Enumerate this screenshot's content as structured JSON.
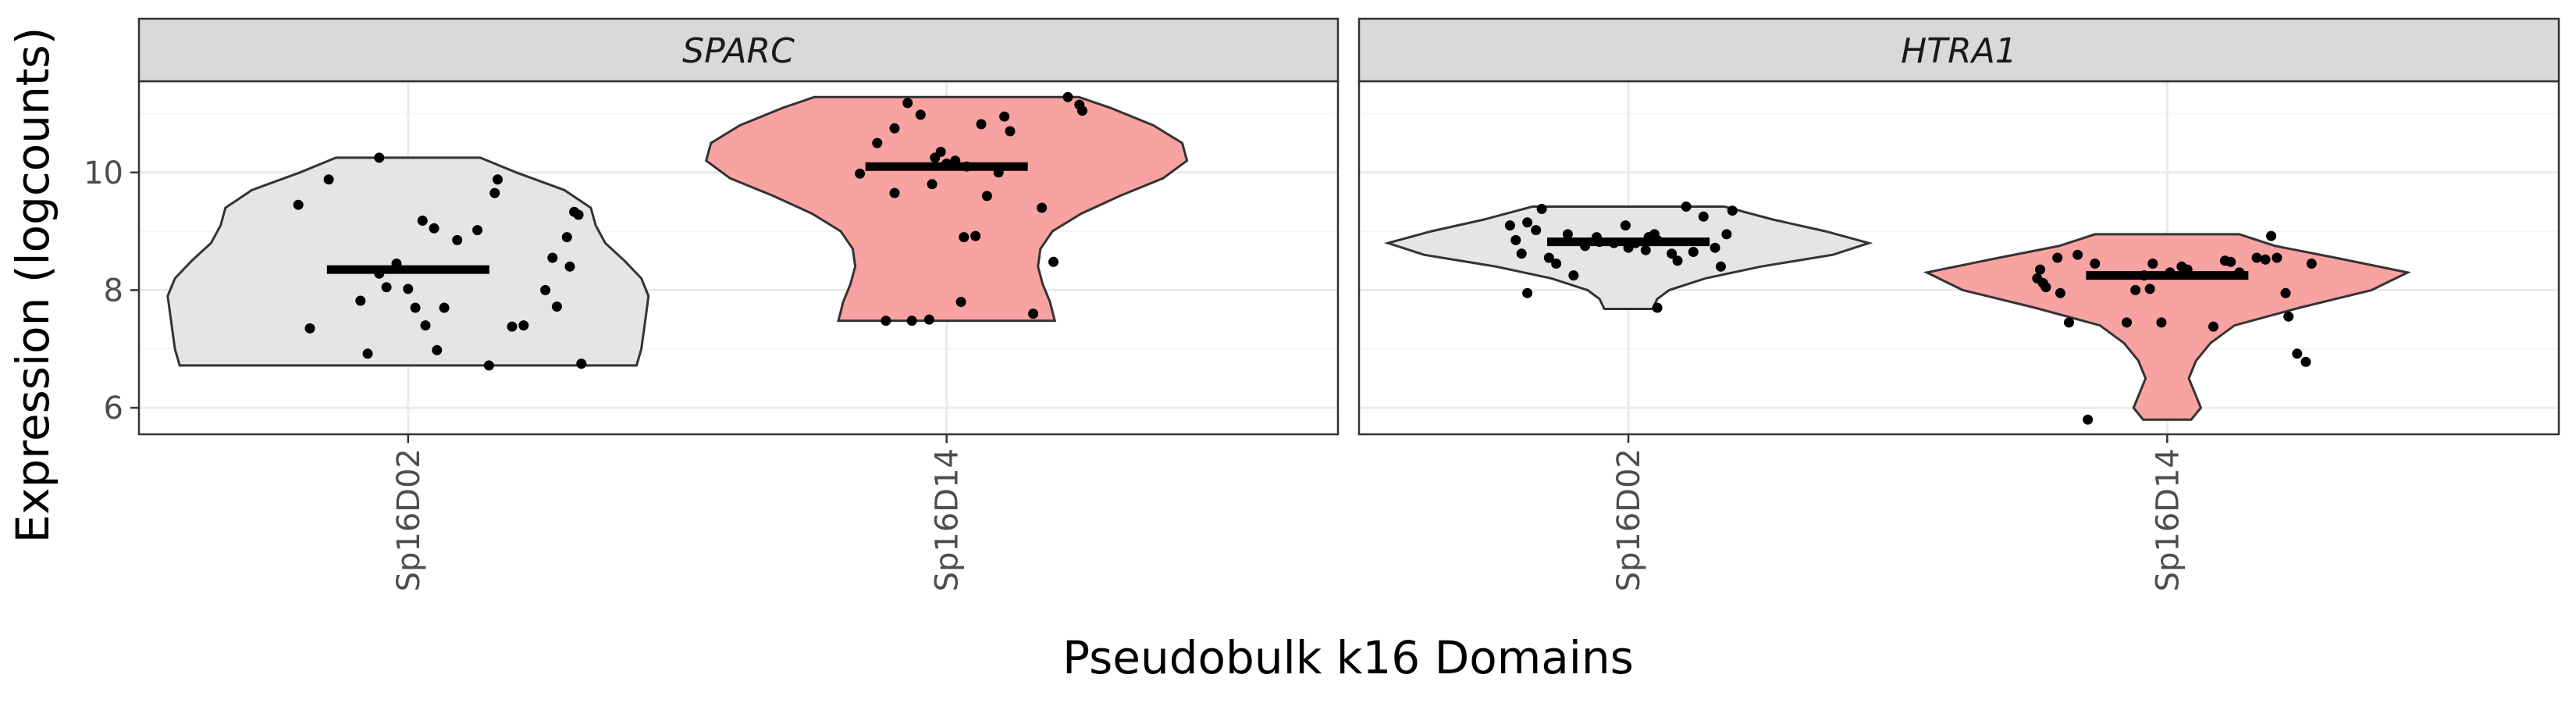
{
  "chart_data": {
    "type": "violin",
    "title": "",
    "xlabel": "Pseudobulk k16 Domains",
    "ylabel": "Expression (logcounts)",
    "ylim": [
      5.55,
      11.55
    ],
    "yticks": [
      6,
      8,
      10
    ],
    "categories": [
      "Sp16D02",
      "Sp16D14"
    ],
    "colors": {
      "Sp16D02": "#e5e5e5",
      "Sp16D14": "#f8a3a1"
    },
    "grid": true,
    "legend": "none",
    "panels": [
      {
        "name": "SPARC",
        "groups": [
          {
            "category": "Sp16D02",
            "median": 8.35,
            "ymin": 6.72,
            "ymax": 10.25,
            "profile": [
              [
                6.72,
                0.95
              ],
              [
                7.0,
                0.97
              ],
              [
                7.3,
                0.98
              ],
              [
                7.6,
                0.99
              ],
              [
                7.9,
                1.0
              ],
              [
                8.2,
                0.97
              ],
              [
                8.5,
                0.9
              ],
              [
                8.8,
                0.82
              ],
              [
                9.1,
                0.78
              ],
              [
                9.4,
                0.76
              ],
              [
                9.7,
                0.65
              ],
              [
                10.0,
                0.45
              ],
              [
                10.25,
                0.3
              ]
            ],
            "points": [
              [
                -0.76,
                9.45
              ],
              [
                -0.55,
                9.88
              ],
              [
                -0.2,
                10.25
              ],
              [
                -0.68,
                7.35
              ],
              [
                -0.33,
                7.82
              ],
              [
                -0.28,
                6.92
              ],
              [
                -0.2,
                8.28
              ],
              [
                0.1,
                9.18
              ],
              [
                -0.08,
                8.45
              ],
              [
                -0.15,
                8.05
              ],
              [
                0.0,
                8.02
              ],
              [
                0.05,
                7.7
              ],
              [
                0.12,
                7.4
              ],
              [
                0.2,
                6.98
              ],
              [
                0.18,
                9.05
              ],
              [
                0.25,
                7.7
              ],
              [
                0.34,
                8.85
              ],
              [
                0.48,
                9.02
              ],
              [
                0.56,
                6.72
              ],
              [
                0.62,
                9.88
              ],
              [
                0.6,
                9.65
              ],
              [
                0.72,
                7.38
              ],
              [
                0.8,
                7.4
              ],
              [
                0.95,
                8.0
              ],
              [
                1.0,
                8.55
              ],
              [
                1.1,
                8.9
              ],
              [
                1.18,
                9.28
              ],
              [
                1.15,
                9.33
              ],
              [
                1.12,
                8.4
              ],
              [
                1.2,
                6.75
              ],
              [
                1.03,
                7.72
              ]
            ]
          },
          {
            "category": "Sp16D14",
            "median": 10.1,
            "ymin": 7.48,
            "ymax": 11.28,
            "profile": [
              [
                7.48,
                0.45
              ],
              [
                7.8,
                0.43
              ],
              [
                8.1,
                0.4
              ],
              [
                8.4,
                0.38
              ],
              [
                8.7,
                0.39
              ],
              [
                9.0,
                0.44
              ],
              [
                9.3,
                0.56
              ],
              [
                9.6,
                0.72
              ],
              [
                9.9,
                0.9
              ],
              [
                10.2,
                1.0
              ],
              [
                10.5,
                0.98
              ],
              [
                10.8,
                0.86
              ],
              [
                11.1,
                0.68
              ],
              [
                11.28,
                0.55
              ]
            ],
            "points": [
              [
                -0.6,
                9.98
              ],
              [
                -0.48,
                10.5
              ],
              [
                -0.36,
                10.75
              ],
              [
                -0.27,
                11.18
              ],
              [
                -0.18,
                10.98
              ],
              [
                -0.36,
                9.65
              ],
              [
                -0.42,
                7.48
              ],
              [
                -0.24,
                7.48
              ],
              [
                -0.12,
                7.5
              ],
              [
                -0.1,
                9.8
              ],
              [
                -0.08,
                10.25
              ],
              [
                -0.04,
                10.35
              ],
              [
                0.0,
                10.15
              ],
              [
                0.06,
                10.2
              ],
              [
                0.14,
                10.1
              ],
              [
                0.12,
                8.9
              ],
              [
                0.2,
                8.92
              ],
              [
                0.1,
                7.8
              ],
              [
                0.24,
                10.82
              ],
              [
                0.28,
                9.6
              ],
              [
                0.36,
                10.0
              ],
              [
                0.4,
                10.95
              ],
              [
                0.44,
                10.7
              ],
              [
                0.6,
                7.6
              ],
              [
                0.66,
                9.4
              ],
              [
                0.74,
                8.48
              ],
              [
                0.84,
                11.28
              ],
              [
                0.92,
                11.15
              ],
              [
                0.94,
                11.05
              ]
            ]
          }
        ]
      },
      {
        "name": "HTRA1",
        "groups": [
          {
            "category": "Sp16D02",
            "median": 8.82,
            "ymin": 7.68,
            "ymax": 9.42,
            "profile": [
              [
                7.68,
                0.1
              ],
              [
                7.85,
                0.12
              ],
              [
                8.0,
                0.17
              ],
              [
                8.2,
                0.32
              ],
              [
                8.4,
                0.55
              ],
              [
                8.6,
                0.85
              ],
              [
                8.8,
                1.0
              ],
              [
                9.0,
                0.82
              ],
              [
                9.2,
                0.6
              ],
              [
                9.42,
                0.4
              ]
            ],
            "points": [
              [
                -0.82,
                9.1
              ],
              [
                -0.78,
                8.85
              ],
              [
                -0.74,
                8.62
              ],
              [
                -0.7,
                9.15
              ],
              [
                -0.64,
                9.02
              ],
              [
                -0.6,
                9.38
              ],
              [
                -0.7,
                7.95
              ],
              [
                -0.55,
                8.55
              ],
              [
                -0.5,
                8.45
              ],
              [
                -0.42,
                8.95
              ],
              [
                -0.38,
                8.25
              ],
              [
                -0.3,
                8.75
              ],
              [
                -0.22,
                8.9
              ],
              [
                -0.2,
                8.82
              ],
              [
                -0.1,
                8.8
              ],
              [
                -0.02,
                9.1
              ],
              [
                0.0,
                8.72
              ],
              [
                0.05,
                8.8
              ],
              [
                0.12,
                8.68
              ],
              [
                0.14,
                8.9
              ],
              [
                0.18,
                8.95
              ],
              [
                0.2,
                8.85
              ],
              [
                0.2,
                7.7
              ],
              [
                0.3,
                8.62
              ],
              [
                0.34,
                8.5
              ],
              [
                0.4,
                9.42
              ],
              [
                0.45,
                8.65
              ],
              [
                0.52,
                9.25
              ],
              [
                0.6,
                8.72
              ],
              [
                0.64,
                8.4
              ],
              [
                0.68,
                8.95
              ],
              [
                0.72,
                9.35
              ]
            ]
          },
          {
            "category": "Sp16D14",
            "median": 8.25,
            "ymin": 5.8,
            "ymax": 8.95,
            "profile": [
              [
                5.8,
                0.1
              ],
              [
                6.0,
                0.14
              ],
              [
                6.2,
                0.12
              ],
              [
                6.5,
                0.09
              ],
              [
                6.8,
                0.12
              ],
              [
                7.1,
                0.18
              ],
              [
                7.4,
                0.28
              ],
              [
                7.7,
                0.55
              ],
              [
                8.0,
                0.85
              ],
              [
                8.3,
                1.0
              ],
              [
                8.55,
                0.7
              ],
              [
                8.75,
                0.45
              ],
              [
                8.95,
                0.3
              ]
            ],
            "points": [
              [
                -0.9,
                8.2
              ],
              [
                -0.88,
                8.35
              ],
              [
                -0.86,
                8.12
              ],
              [
                -0.84,
                8.05
              ],
              [
                -0.76,
                8.55
              ],
              [
                -0.74,
                7.95
              ],
              [
                -0.68,
                7.45
              ],
              [
                -0.62,
                8.6
              ],
              [
                -0.5,
                8.45
              ],
              [
                -0.55,
                5.8
              ],
              [
                -0.28,
                7.45
              ],
              [
                -0.22,
                8.0
              ],
              [
                -0.16,
                8.25
              ],
              [
                -0.12,
                8.02
              ],
              [
                -0.1,
                8.45
              ],
              [
                -0.04,
                7.45
              ],
              [
                0.02,
                8.3
              ],
              [
                0.1,
                8.4
              ],
              [
                0.14,
                8.35
              ],
              [
                0.32,
                7.38
              ],
              [
                0.4,
                8.5
              ],
              [
                0.44,
                8.48
              ],
              [
                0.5,
                8.3
              ],
              [
                0.62,
                8.55
              ],
              [
                0.68,
                8.52
              ],
              [
                0.72,
                8.92
              ],
              [
                0.76,
                8.55
              ],
              [
                0.82,
                7.95
              ],
              [
                0.84,
                7.55
              ],
              [
                0.9,
                6.92
              ],
              [
                0.96,
                6.78
              ],
              [
                1.0,
                8.45
              ]
            ]
          }
        ]
      }
    ]
  }
}
